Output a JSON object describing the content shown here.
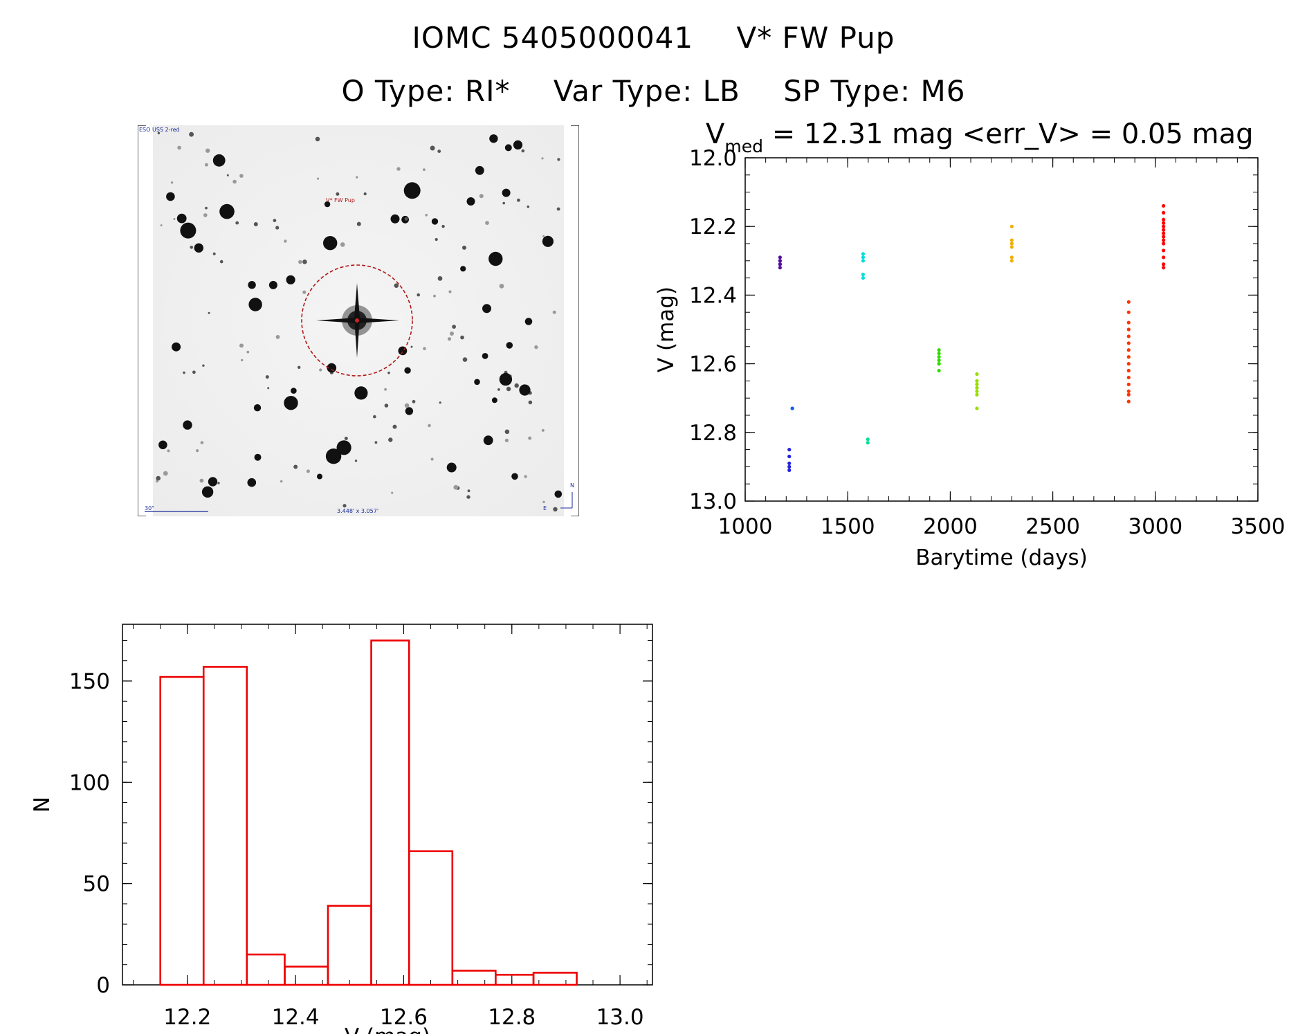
{
  "header": {
    "line1_id": "IOMC 5405000041",
    "line1_name": "V* FW Pup",
    "line2_otype": "O Type: RI*",
    "line2_vartype": "Var Type: LB",
    "line2_sptype": "SP Type: M6"
  },
  "finder": {
    "survey_label": "ESO USS 2-red",
    "target_label": "V* FW Pup",
    "scale_label": "30\"",
    "fov_label": "3.448' x 3.057'",
    "north_label": "N",
    "east_label": "E"
  },
  "chart_data": [
    {
      "type": "scatter",
      "title_parts": {
        "sym": "V",
        "sub": "med",
        "rest": " = 12.31 mag <err_V> = 0.05 mag"
      },
      "xlabel": "Barytime (days)",
      "ylabel": "V (mag)",
      "xlim": [
        1000,
        3500
      ],
      "ylim": [
        13.0,
        12.0
      ],
      "y_inverted": true,
      "xticks": [
        "1000",
        "1500",
        "2000",
        "2500",
        "3000",
        "3500"
      ],
      "yticks": [
        "12.0",
        "12.2",
        "12.4",
        "12.6",
        "12.8",
        "13.0"
      ],
      "grid": false,
      "series": [
        {
          "color": "#55109a",
          "x": [
            1170,
            1170,
            1170,
            1170,
            1170,
            1170
          ],
          "y": [
            12.29,
            12.3,
            12.3,
            12.31,
            12.31,
            12.32
          ]
        },
        {
          "color": "#2222dd",
          "x": [
            1215,
            1215,
            1215,
            1215,
            1215
          ],
          "y": [
            12.85,
            12.87,
            12.89,
            12.9,
            12.91
          ]
        },
        {
          "color": "#1060ee",
          "x": [
            1230,
            1230
          ],
          "y": [
            12.73,
            12.73
          ]
        },
        {
          "color": "#00dddd",
          "x": [
            1575,
            1575,
            1575,
            1575,
            1575
          ],
          "y": [
            12.28,
            12.29,
            12.3,
            12.34,
            12.35
          ]
        },
        {
          "color": "#00e090",
          "x": [
            1598,
            1598
          ],
          "y": [
            12.82,
            12.83
          ]
        },
        {
          "color": "#33dd00",
          "x": [
            1945,
            1945,
            1945,
            1945,
            1945,
            1945,
            1945
          ],
          "y": [
            12.56,
            12.57,
            12.58,
            12.59,
            12.6,
            12.6,
            12.62
          ]
        },
        {
          "color": "#99dd00",
          "x": [
            2130,
            2130,
            2130,
            2130,
            2130,
            2130,
            2130
          ],
          "y": [
            12.63,
            12.65,
            12.66,
            12.67,
            12.68,
            12.69,
            12.73
          ]
        },
        {
          "color": "#f0b000",
          "x": [
            2300,
            2300,
            2300,
            2300,
            2300,
            2300
          ],
          "y": [
            12.2,
            12.24,
            12.25,
            12.26,
            12.29,
            12.3
          ]
        },
        {
          "color": "#ff3300",
          "x": [
            2870,
            2870,
            2870,
            2870,
            2870,
            2870,
            2870,
            2870,
            2870,
            2870,
            2870,
            2870,
            2870,
            2870,
            2870
          ],
          "y": [
            12.42,
            12.45,
            12.48,
            12.5,
            12.52,
            12.54,
            12.56,
            12.58,
            12.6,
            12.62,
            12.64,
            12.66,
            12.68,
            12.69,
            12.71
          ]
        },
        {
          "color": "#ff0000",
          "x": [
            3040,
            3040,
            3040,
            3040,
            3040,
            3040,
            3040,
            3040,
            3040,
            3040,
            3040,
            3040,
            3040,
            3040
          ],
          "y": [
            12.14,
            12.16,
            12.18,
            12.19,
            12.2,
            12.21,
            12.22,
            12.23,
            12.24,
            12.25,
            12.27,
            12.29,
            12.31,
            12.32
          ]
        }
      ]
    },
    {
      "type": "bar",
      "xlabel": "V (mag)",
      "ylabel": "N",
      "xlim": [
        12.08,
        13.06
      ],
      "ylim": [
        0,
        178
      ],
      "xticks": [
        "12.2",
        "12.4",
        "12.6",
        "12.8",
        "13.0"
      ],
      "yticks": [
        "0",
        "50",
        "100",
        "150"
      ],
      "bar_color": "#ee0000",
      "bins": [
        {
          "x0": 12.15,
          "x1": 12.23,
          "n": 152
        },
        {
          "x0": 12.23,
          "x1": 12.31,
          "n": 157
        },
        {
          "x0": 12.31,
          "x1": 12.38,
          "n": 15
        },
        {
          "x0": 12.38,
          "x1": 12.46,
          "n": 9
        },
        {
          "x0": 12.46,
          "x1": 12.54,
          "n": 39
        },
        {
          "x0": 12.54,
          "x1": 12.61,
          "n": 170
        },
        {
          "x0": 12.61,
          "x1": 12.69,
          "n": 66
        },
        {
          "x0": 12.69,
          "x1": 12.77,
          "n": 7
        },
        {
          "x0": 12.77,
          "x1": 12.84,
          "n": 5
        },
        {
          "x0": 12.84,
          "x1": 12.92,
          "n": 6
        }
      ]
    }
  ]
}
